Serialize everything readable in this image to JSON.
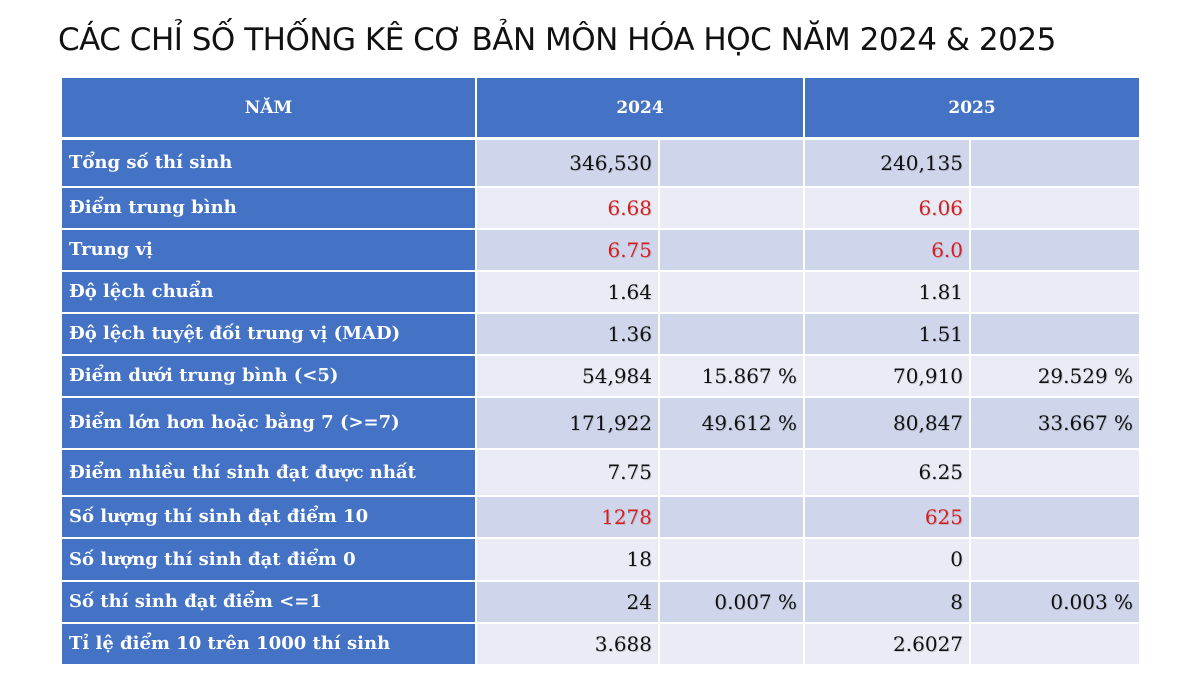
{
  "title": "CÁC CHỈ SỐ THỐNG KÊ CƠ BẢN MÔN HÓA HỌC NĂM 2024 & 2025",
  "colors": {
    "header_bg": "#4472c4",
    "row_band_dark": "#cfd5ea",
    "row_band_light": "#e9ebf5",
    "highlight_text": "#d81e1e"
  },
  "table": {
    "headers": {
      "year": "NĂM",
      "y2024": "2024",
      "y2025": "2025"
    },
    "rows": [
      {
        "label": "Tổng số thí sinh",
        "v2024": "346,530",
        "p2024": "",
        "v2025": "240,135",
        "p2025": ""
      },
      {
        "label": "Điểm trung bình",
        "v2024": "6.68",
        "p2024": "",
        "v2025": "6.06",
        "p2025": ""
      },
      {
        "label": "Trung vị",
        "v2024": "6.75",
        "p2024": "",
        "v2025": "6.0",
        "p2025": ""
      },
      {
        "label": "Độ lệch chuẩn",
        "v2024": "1.64",
        "p2024": "",
        "v2025": "1.81",
        "p2025": ""
      },
      {
        "label": "Độ lệch tuyệt đối trung vị (MAD)",
        "v2024": "1.36",
        "p2024": "",
        "v2025": "1.51",
        "p2025": ""
      },
      {
        "label": "Điểm dưới trung bình (<5)",
        "v2024": "54,984",
        "p2024": "15.867 %",
        "v2025": "70,910",
        "p2025": "29.529 %"
      },
      {
        "label": "Điểm lớn hơn hoặc bằng 7 (>=7)",
        "v2024": "171,922",
        "p2024": "49.612 %",
        "v2025": "80,847",
        "p2025": "33.667 %"
      },
      {
        "label": "Điểm nhiều thí sinh đạt được nhất",
        "v2024": "7.75",
        "p2024": "",
        "v2025": "6.25",
        "p2025": ""
      },
      {
        "label": "Số lượng thí sinh đạt điểm 10",
        "v2024": "1278",
        "p2024": "",
        "v2025": "625",
        "p2025": ""
      },
      {
        "label": "Số lượng thí sinh đạt điểm 0",
        "v2024": "18",
        "p2024": "",
        "v2025": "0",
        "p2025": ""
      },
      {
        "label": "Số thí sinh đạt điểm <=1",
        "v2024": "24",
        "p2024": "0.007 %",
        "v2025": "8",
        "p2025": "0.003 %"
      },
      {
        "label": "Tỉ lệ điểm 10 trên 1000 thí sinh",
        "v2024": "3.688",
        "p2024": "",
        "v2025": "2.6027",
        "p2025": ""
      }
    ]
  }
}
